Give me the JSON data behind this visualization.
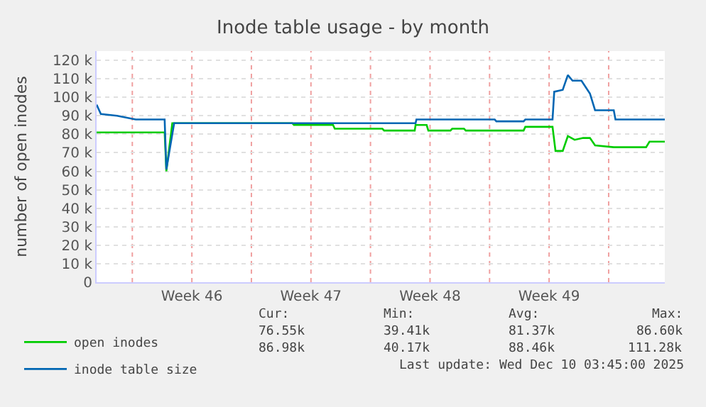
{
  "chart_data": {
    "type": "line",
    "title": "Inode table usage - by month",
    "ylabel": "number of open inodes",
    "xlim": [
      "2025-11-07T21:36",
      "2025-12-11T07:12"
    ],
    "ylim": [
      0,
      125
    ],
    "xticks": [
      {
        "value": "2025-11-10",
        "label": null
      },
      {
        "value": "2025-11-13T12:00",
        "label": "Week 46"
      },
      {
        "value": "2025-11-17",
        "label": null
      },
      {
        "value": "2025-11-20T12:00",
        "label": "Week 47"
      },
      {
        "value": "2025-11-24",
        "label": null
      },
      {
        "value": "2025-11-27T12:00",
        "label": "Week 48"
      },
      {
        "value": "2025-12-01",
        "label": null
      },
      {
        "value": "2025-12-04T12:00",
        "label": "Week 49"
      },
      {
        "value": "2025-12-08",
        "label": null
      }
    ],
    "yticks": [
      {
        "value": 0,
        "label": "0"
      },
      {
        "value": 10,
        "label": "10 k"
      },
      {
        "value": 20,
        "label": "20 k"
      },
      {
        "value": 30,
        "label": "30 k"
      },
      {
        "value": 40,
        "label": "40 k"
      },
      {
        "value": 50,
        "label": "50 k"
      },
      {
        "value": 60,
        "label": "60 k"
      },
      {
        "value": 70,
        "label": "70 k"
      },
      {
        "value": 80,
        "label": "80 k"
      },
      {
        "value": 90,
        "label": "90 k"
      },
      {
        "value": 100,
        "label": "100 k"
      },
      {
        "value": 110,
        "label": "110 k"
      },
      {
        "value": 120,
        "label": "120 k"
      }
    ],
    "grid": true,
    "legend": "bottom left",
    "marker": "none",
    "line_style": "solid",
    "series": [
      {
        "name": "open inodes",
        "color": "#00cc00",
        "x": [
          "2025-11-07T21:36",
          "2025-11-11T21:36",
          "2025-11-12T00:00",
          "2025-11-12T08:24",
          "2025-11-19T09:36",
          "2025-11-19T12:00",
          "2025-11-21T19:12",
          "2025-11-21T21:36",
          "2025-11-22T07:12",
          "2025-11-24T16:48",
          "2025-11-24T19:12",
          "2025-11-26T14:24",
          "2025-11-26T15:36",
          "2025-11-27T07:12",
          "2025-11-27T09:36",
          "2025-11-28T16:48",
          "2025-11-28T19:12",
          "2025-11-29T12:00",
          "2025-11-29T14:24",
          "2025-12-03T00:00",
          "2025-12-03T02:24",
          "2025-12-04T16:48",
          "2025-12-04T21:00",
          "2025-12-05T07:12",
          "2025-12-05T14:24",
          "2025-12-06T00:00",
          "2025-12-06T12:00",
          "2025-12-06T21:36",
          "2025-12-07T04:48",
          "2025-12-08T07:12",
          "2025-12-10T04:48",
          "2025-12-10T09:36",
          "2025-12-11T07:12"
        ],
        "values": [
          81,
          81,
          60,
          86,
          86,
          85,
          85,
          83,
          83,
          83,
          82,
          82,
          85,
          85,
          82,
          82,
          83,
          83,
          82,
          82,
          84,
          84,
          71,
          71,
          79,
          77,
          78,
          78,
          74,
          73,
          73,
          76,
          76
        ]
      },
      {
        "name": "inode table size",
        "color": "#0066b3",
        "x": [
          "2025-11-07T21:36",
          "2025-11-08T03:36",
          "2025-11-09T02:24",
          "2025-11-10T04:48",
          "2025-11-11T21:36",
          "2025-11-12T00:00",
          "2025-11-12T11:00",
          "2025-11-19T09:36",
          "2025-11-19T12:00",
          "2025-11-22T07:12",
          "2025-11-26T15:36",
          "2025-11-26T16:48",
          "2025-12-01T07:12",
          "2025-12-01T09:36",
          "2025-12-03T00:00",
          "2025-12-03T02:24",
          "2025-12-04T16:48",
          "2025-12-04T19:12",
          "2025-12-05T07:12",
          "2025-12-05T14:24",
          "2025-12-05T21:00",
          "2025-12-06T09:36",
          "2025-12-06T21:36",
          "2025-12-07T04:48",
          "2025-12-08T07:12",
          "2025-12-08T09:36",
          "2025-12-10T09:36",
          "2025-12-10T12:00",
          "2025-12-11T07:12"
        ],
        "values": [
          96,
          91,
          90,
          88,
          88,
          61,
          86,
          86,
          86,
          86,
          86,
          88,
          88,
          87,
          87,
          88,
          88,
          103,
          104,
          112,
          109,
          109,
          102,
          93,
          93,
          88,
          88,
          88,
          88
        ]
      }
    ],
    "annotations": [
      "Cur:",
      "Min:",
      "Avg:",
      "Max:",
      "76.55k",
      "39.41k",
      "81.37k",
      "86.60k",
      "86.98k",
      "40.17k",
      "88.46k",
      "111.28k",
      "Last update: Wed Dec 10 03:45:00 2025"
    ]
  }
}
